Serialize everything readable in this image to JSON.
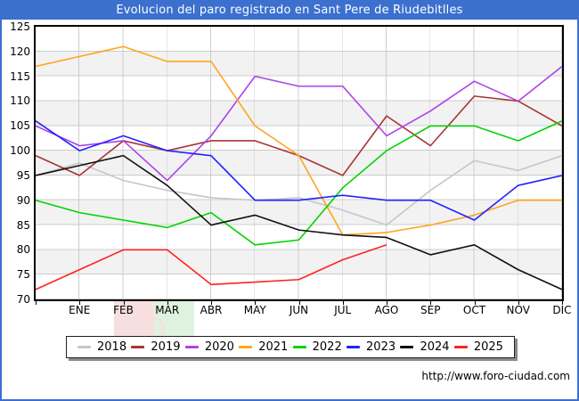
{
  "window": {
    "title": "Evolucion del paro registrado en Sant Pere de Riudebitlles"
  },
  "footer": {
    "url": "http://www.foro-ciudad.com"
  },
  "colors": {
    "titlebar": "#3b70cf",
    "outer_border": "#3b70cf",
    "plot_frame": "#000000",
    "gridline": "#cccccc",
    "band": "#f2f2f2",
    "watermark_red": "#d94040",
    "watermark_green": "#3fae3f"
  },
  "chart_data": {
    "type": "line",
    "title": "Evolucion del paro registrado en Sant Pere de Riudebitlles",
    "x_categories": [
      "ENE",
      "FEB",
      "MAR",
      "ABR",
      "MAY",
      "JUN",
      "JUL",
      "AGO",
      "SEP",
      "OCT",
      "NOV",
      "DIC"
    ],
    "yticks": [
      125,
      120,
      115,
      110,
      105,
      100,
      95,
      90,
      85,
      80,
      75,
      70
    ],
    "ylim": [
      70,
      125
    ],
    "grid": true,
    "legend_position": "bottom",
    "start_at_axis": true,
    "series": [
      {
        "name": "2018",
        "color": "#c6c6c6",
        "start": 95,
        "values": [
          97.5,
          94,
          92,
          90.5,
          90,
          90.5,
          88,
          85,
          92,
          98,
          96,
          99
        ]
      },
      {
        "name": "2019",
        "color": "#a83535",
        "start": 99,
        "values": [
          95,
          102,
          100,
          102,
          102,
          99,
          95,
          107,
          101,
          111,
          110,
          105
        ]
      },
      {
        "name": "2020",
        "color": "#aa44e8",
        "start": 105,
        "values": [
          101,
          102,
          94,
          103,
          115,
          113,
          113,
          103,
          108,
          114,
          110,
          117
        ]
      },
      {
        "name": "2021",
        "color": "#ffa41e",
        "start": 117,
        "values": [
          119,
          121,
          118,
          118,
          105,
          99,
          83,
          83.5,
          85,
          87,
          90,
          90
        ]
      },
      {
        "name": "2022",
        "color": "#00d500",
        "start": 90,
        "values": [
          87.5,
          86,
          84.5,
          87.5,
          81,
          82,
          92.5,
          100,
          105,
          105,
          102,
          106
        ]
      },
      {
        "name": "2023",
        "color": "#2222ff",
        "start": 106,
        "values": [
          100,
          103,
          100,
          99,
          90,
          90,
          91,
          90,
          90,
          86,
          93,
          95
        ]
      },
      {
        "name": "2024",
        "color": "#111111",
        "start": 95,
        "values": [
          97,
          99,
          93,
          85,
          87,
          84,
          83,
          82.5,
          79,
          81,
          76,
          72
        ]
      },
      {
        "name": "2025",
        "color": "#ff2222",
        "start": 72,
        "values": [
          76,
          80,
          80,
          73,
          73.5,
          74,
          78,
          81,
          null,
          null,
          null,
          null
        ]
      }
    ]
  }
}
